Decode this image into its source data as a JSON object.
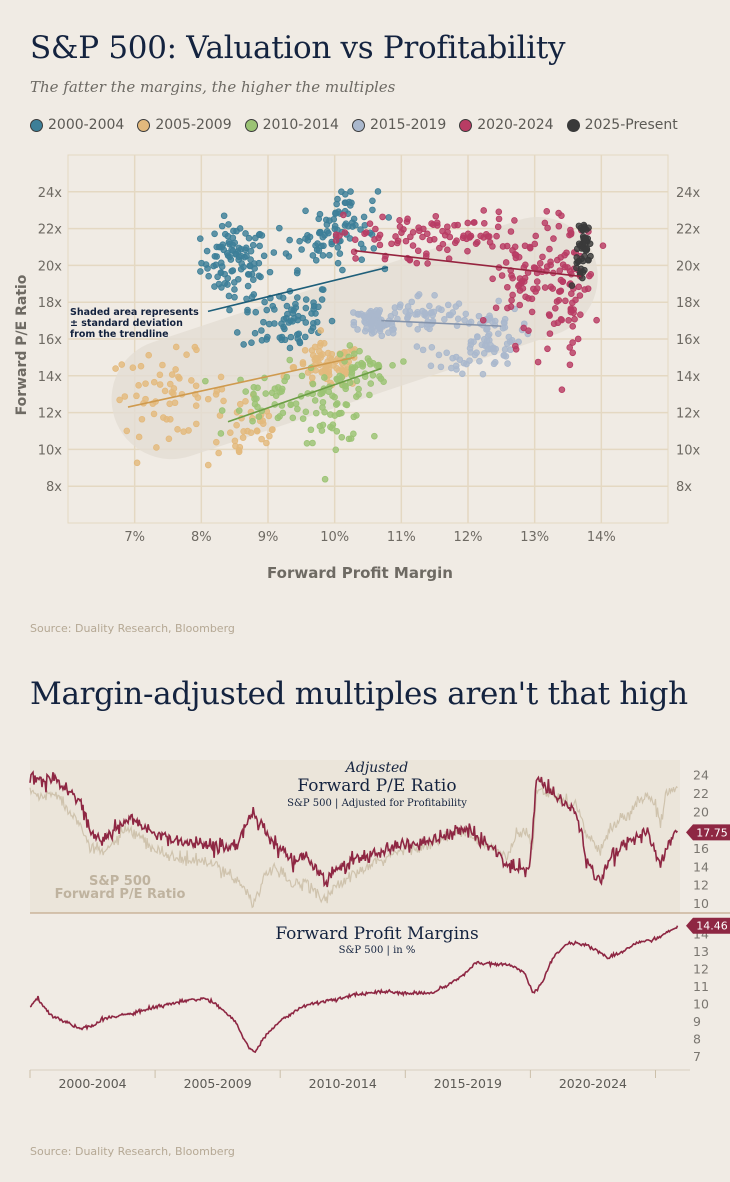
{
  "header": {
    "title": "S&P 500: Valuation vs Profitability",
    "subtitle": "The fatter the margins, the higher the multiples"
  },
  "colors": {
    "2000-2004": "#3d7f98",
    "2005-2009": "#e3b97d",
    "2010-2014": "#9bc374",
    "2015-2019": "#aab8cd",
    "2020-2024": "#b83c64",
    "2025-Present": "#3a3a3a",
    "background": "#f0ebe4",
    "navy": "#14233f",
    "maroon": "#8e2743",
    "beige_line": "#cfc3ad"
  },
  "chart_data": [
    {
      "type": "scatter",
      "xlabel": "Forward Profit Margin",
      "ylabel": "Forward P/E Ratio",
      "x_ticks": [
        "7%",
        "8%",
        "9%",
        "10%",
        "11%",
        "12%",
        "13%",
        "14%"
      ],
      "y_ticks": [
        "24x",
        "22x",
        "20x",
        "18x",
        "16x",
        "14x",
        "12x",
        "10x",
        "8x"
      ],
      "xlim": [
        6.0,
        15.0
      ],
      "ylim": [
        6.0,
        26.0
      ],
      "annotation": [
        "Shaded area represents",
        "± standard deviation",
        "from the trendline"
      ],
      "series": [
        {
          "name": "2000-2004",
          "clusters": [
            {
              "cx": 8.5,
              "cy": 20.2,
              "sx": 0.25,
              "sy": 1.0,
              "n": 95
            },
            {
              "cx": 9.3,
              "cy": 17.2,
              "sx": 0.35,
              "sy": 1.0,
              "n": 75
            },
            {
              "cx": 9.8,
              "cy": 21.2,
              "sx": 0.35,
              "sy": 0.7,
              "n": 50
            },
            {
              "cx": 10.2,
              "cy": 22.8,
              "sx": 0.22,
              "sy": 0.7,
              "n": 40
            }
          ],
          "trend": [
            [
              8.1,
              17.5
            ],
            [
              10.8,
              19.9
            ]
          ]
        },
        {
          "name": "2005-2009",
          "clusters": [
            {
              "cx": 7.5,
              "cy": 13.0,
              "sx": 0.45,
              "sy": 1.1,
              "n": 60
            },
            {
              "cx": 8.7,
              "cy": 11.0,
              "sx": 0.3,
              "sy": 1.0,
              "n": 35
            },
            {
              "cx": 9.9,
              "cy": 14.5,
              "sx": 0.25,
              "sy": 0.6,
              "n": 80
            }
          ],
          "trend": [
            [
              6.9,
              12.3
            ],
            [
              10.3,
              15.0
            ]
          ]
        },
        {
          "name": "2010-2014",
          "clusters": [
            {
              "cx": 9.2,
              "cy": 12.9,
              "sx": 0.4,
              "sy": 0.8,
              "n": 45
            },
            {
              "cx": 10.0,
              "cy": 12.4,
              "sx": 0.25,
              "sy": 1.0,
              "n": 55
            },
            {
              "cx": 10.4,
              "cy": 14.3,
              "sx": 0.2,
              "sy": 0.6,
              "n": 35
            }
          ],
          "trend": [
            [
              8.4,
              11.5
            ],
            [
              10.7,
              14.4
            ]
          ]
        },
        {
          "name": "2015-2019",
          "clusters": [
            {
              "cx": 10.6,
              "cy": 16.9,
              "sx": 0.15,
              "sy": 0.4,
              "n": 70
            },
            {
              "cx": 11.3,
              "cy": 17.3,
              "sx": 0.35,
              "sy": 0.6,
              "n": 55
            },
            {
              "cx": 12.3,
              "cy": 16.2,
              "sx": 0.25,
              "sy": 0.8,
              "n": 70
            },
            {
              "cx": 11.7,
              "cy": 14.5,
              "sx": 0.3,
              "sy": 0.6,
              "n": 15
            }
          ],
          "trend": [
            [
              10.7,
              17.0
            ],
            [
              12.5,
              16.7
            ]
          ]
        },
        {
          "name": "2020-2024",
          "clusters": [
            {
              "cx": 10.8,
              "cy": 21.4,
              "sx": 0.4,
              "sy": 0.7,
              "n": 45
            },
            {
              "cx": 11.9,
              "cy": 21.7,
              "sx": 0.4,
              "sy": 0.6,
              "n": 45
            },
            {
              "cx": 12.9,
              "cy": 19.2,
              "sx": 0.3,
              "sy": 1.7,
              "n": 80
            },
            {
              "cx": 13.5,
              "cy": 18.9,
              "sx": 0.2,
              "sy": 1.8,
              "n": 70
            }
          ],
          "trend": [
            [
              10.3,
              20.8
            ],
            [
              13.7,
              19.4
            ]
          ]
        },
        {
          "name": "2025-Present",
          "clusters": [
            {
              "cx": 13.75,
              "cy": 21.2,
              "sx": 0.05,
              "sy": 0.6,
              "n": 40
            },
            {
              "cx": 13.7,
              "cy": 19.6,
              "sx": 0.05,
              "sy": 0.4,
              "n": 10
            }
          ],
          "trend": null
        }
      ]
    },
    {
      "type": "line",
      "title_prefix": "Adjusted",
      "title": "Forward P/E Ratio",
      "subtitle": "S&P 500 | Adjusted for Profitability",
      "series_label": [
        "S&P 500",
        "Forward P/E Ratio"
      ],
      "y_ticks": [
        "24",
        "22",
        "20",
        "18",
        "16",
        "14",
        "12",
        "10"
      ],
      "ylim": [
        9.5,
        25.0
      ],
      "x_range": [
        2000.0,
        2025.9
      ],
      "end_value_label": "17.75",
      "series": [
        {
          "name": "Adjusted Forward P/E",
          "keypoints": [
            [
              2000.0,
              23.8
            ],
            [
              2000.5,
              23.3
            ],
            [
              2001.0,
              23.6
            ],
            [
              2001.5,
              22.3
            ],
            [
              2002.0,
              21.2
            ],
            [
              2002.4,
              17.8
            ],
            [
              2003.0,
              16.8
            ],
            [
              2003.5,
              18.3
            ],
            [
              2004.0,
              19.6
            ],
            [
              2004.5,
              18.3
            ],
            [
              2005.0,
              17.6
            ],
            [
              2006.0,
              16.8
            ],
            [
              2007.0,
              16.5
            ],
            [
              2007.8,
              16.0
            ],
            [
              2008.3,
              16.5
            ],
            [
              2008.6,
              18.2
            ],
            [
              2008.9,
              19.9
            ],
            [
              2009.3,
              18.6
            ],
            [
              2009.6,
              16.8
            ],
            [
              2010.0,
              16.3
            ],
            [
              2010.5,
              14.6
            ],
            [
              2011.0,
              15.0
            ],
            [
              2011.5,
              13.7
            ],
            [
              2011.8,
              12.4
            ],
            [
              2012.3,
              13.8
            ],
            [
              2013.0,
              14.8
            ],
            [
              2014.0,
              15.5
            ],
            [
              2015.0,
              16.5
            ],
            [
              2016.0,
              16.8
            ],
            [
              2016.5,
              17.3
            ],
            [
              2017.0,
              17.9
            ],
            [
              2017.5,
              18.1
            ],
            [
              2018.0,
              16.9
            ],
            [
              2018.5,
              16.3
            ],
            [
              2019.0,
              14.2
            ],
            [
              2019.5,
              13.9
            ],
            [
              2019.9,
              13.4
            ],
            [
              2020.1,
              17.5
            ],
            [
              2020.25,
              23.6
            ],
            [
              2020.8,
              22.3
            ],
            [
              2021.3,
              21.0
            ],
            [
              2021.8,
              20.0
            ],
            [
              2022.3,
              14.5
            ],
            [
              2022.8,
              12.4
            ],
            [
              2023.3,
              15.3
            ],
            [
              2023.8,
              16.5
            ],
            [
              2024.3,
              17.2
            ],
            [
              2024.7,
              17.9
            ],
            [
              2025.0,
              15.6
            ],
            [
              2025.2,
              13.8
            ],
            [
              2025.4,
              16.0
            ],
            [
              2025.7,
              17.6
            ],
            [
              2025.9,
              17.75
            ]
          ]
        },
        {
          "name": "S&P 500 Forward P/E Ratio",
          "keypoints": [
            [
              2000.0,
              22.3
            ],
            [
              2000.5,
              21.5
            ],
            [
              2001.0,
              22.3
            ],
            [
              2001.5,
              20.2
            ],
            [
              2002.0,
              19.1
            ],
            [
              2002.4,
              15.9
            ],
            [
              2003.0,
              15.6
            ],
            [
              2003.5,
              17.2
            ],
            [
              2004.0,
              18.0
            ],
            [
              2004.5,
              16.8
            ],
            [
              2005.0,
              15.8
            ],
            [
              2006.0,
              14.8
            ],
            [
              2007.0,
              14.5
            ],
            [
              2007.8,
              13.6
            ],
            [
              2008.3,
              12.5
            ],
            [
              2008.7,
              11.2
            ],
            [
              2008.9,
              10.0
            ],
            [
              2009.3,
              12.4
            ],
            [
              2009.6,
              13.7
            ],
            [
              2010.0,
              13.3
            ],
            [
              2010.5,
              12.0
            ],
            [
              2011.0,
              12.4
            ],
            [
              2011.5,
              11.2
            ],
            [
              2011.8,
              10.4
            ],
            [
              2012.3,
              12.0
            ],
            [
              2013.0,
              13.2
            ],
            [
              2014.0,
              14.6
            ],
            [
              2015.0,
              16.0
            ],
            [
              2016.0,
              16.4
            ],
            [
              2016.5,
              17.0
            ],
            [
              2017.0,
              17.6
            ],
            [
              2017.5,
              17.8
            ],
            [
              2018.0,
              16.5
            ],
            [
              2018.5,
              16.1
            ],
            [
              2019.0,
              15.0
            ],
            [
              2019.5,
              17.4
            ],
            [
              2019.9,
              17.8
            ],
            [
              2020.1,
              16.0
            ],
            [
              2020.25,
              22.5
            ],
            [
              2020.8,
              22.2
            ],
            [
              2021.3,
              21.3
            ],
            [
              2021.8,
              20.9
            ],
            [
              2022.3,
              17.3
            ],
            [
              2022.8,
              15.7
            ],
            [
              2023.3,
              18.6
            ],
            [
              2023.8,
              19.5
            ],
            [
              2024.3,
              21.0
            ],
            [
              2024.7,
              22.0
            ],
            [
              2025.0,
              20.5
            ],
            [
              2025.2,
              18.8
            ],
            [
              2025.4,
              21.8
            ],
            [
              2025.7,
              22.6
            ],
            [
              2025.9,
              22.8
            ]
          ]
        }
      ]
    },
    {
      "type": "line",
      "title": "Forward Profit Margins",
      "subtitle": "S&P 500 | in %",
      "y_ticks": [
        "14",
        "13",
        "12",
        "11",
        "10",
        "9",
        "8",
        "7"
      ],
      "ylim": [
        6.5,
        14.9
      ],
      "x_range": [
        2000.0,
        2025.9
      ],
      "end_value_label": "14.46",
      "x_tick_labels": [
        "2000-2004",
        "2005-2009",
        "2010-2014",
        "2015-2019",
        "2020-2024"
      ],
      "series": [
        {
          "name": "Forward Profit Margins",
          "keypoints": [
            [
              2000.0,
              9.8
            ],
            [
              2000.3,
              10.3
            ],
            [
              2000.8,
              9.4
            ],
            [
              2001.5,
              8.9
            ],
            [
              2002.0,
              8.6
            ],
            [
              2002.5,
              8.7
            ],
            [
              2003.0,
              9.2
            ],
            [
              2004.0,
              9.4
            ],
            [
              2005.0,
              9.8
            ],
            [
              2006.0,
              10.1
            ],
            [
              2007.0,
              10.3
            ],
            [
              2007.6,
              9.8
            ],
            [
              2008.2,
              9.0
            ],
            [
              2008.7,
              7.6
            ],
            [
              2009.0,
              7.2
            ],
            [
              2009.4,
              8.2
            ],
            [
              2010.0,
              9.0
            ],
            [
              2010.6,
              9.6
            ],
            [
              2011.0,
              9.9
            ],
            [
              2012.0,
              10.2
            ],
            [
              2013.0,
              10.5
            ],
            [
              2014.0,
              10.7
            ],
            [
              2015.0,
              10.6
            ],
            [
              2016.0,
              10.6
            ],
            [
              2016.5,
              10.9
            ],
            [
              2017.3,
              11.6
            ],
            [
              2017.8,
              12.3
            ],
            [
              2018.5,
              12.3
            ],
            [
              2019.3,
              12.2
            ],
            [
              2019.8,
              11.7
            ],
            [
              2020.1,
              10.6
            ],
            [
              2020.4,
              11.0
            ],
            [
              2020.9,
              12.6
            ],
            [
              2021.5,
              13.5
            ],
            [
              2022.2,
              13.4
            ],
            [
              2022.6,
              13.1
            ],
            [
              2023.1,
              12.6
            ],
            [
              2023.7,
              13.0
            ],
            [
              2024.3,
              13.5
            ],
            [
              2025.0,
              13.7
            ],
            [
              2025.5,
              14.1
            ],
            [
              2025.9,
              14.46
            ]
          ]
        }
      ]
    }
  ],
  "second_title": "Margin-adjusted multiples aren't that high",
  "source_top": "Source: Duality Research, Bloomberg",
  "source_bottom": "Source: Duality Research, Bloomberg"
}
